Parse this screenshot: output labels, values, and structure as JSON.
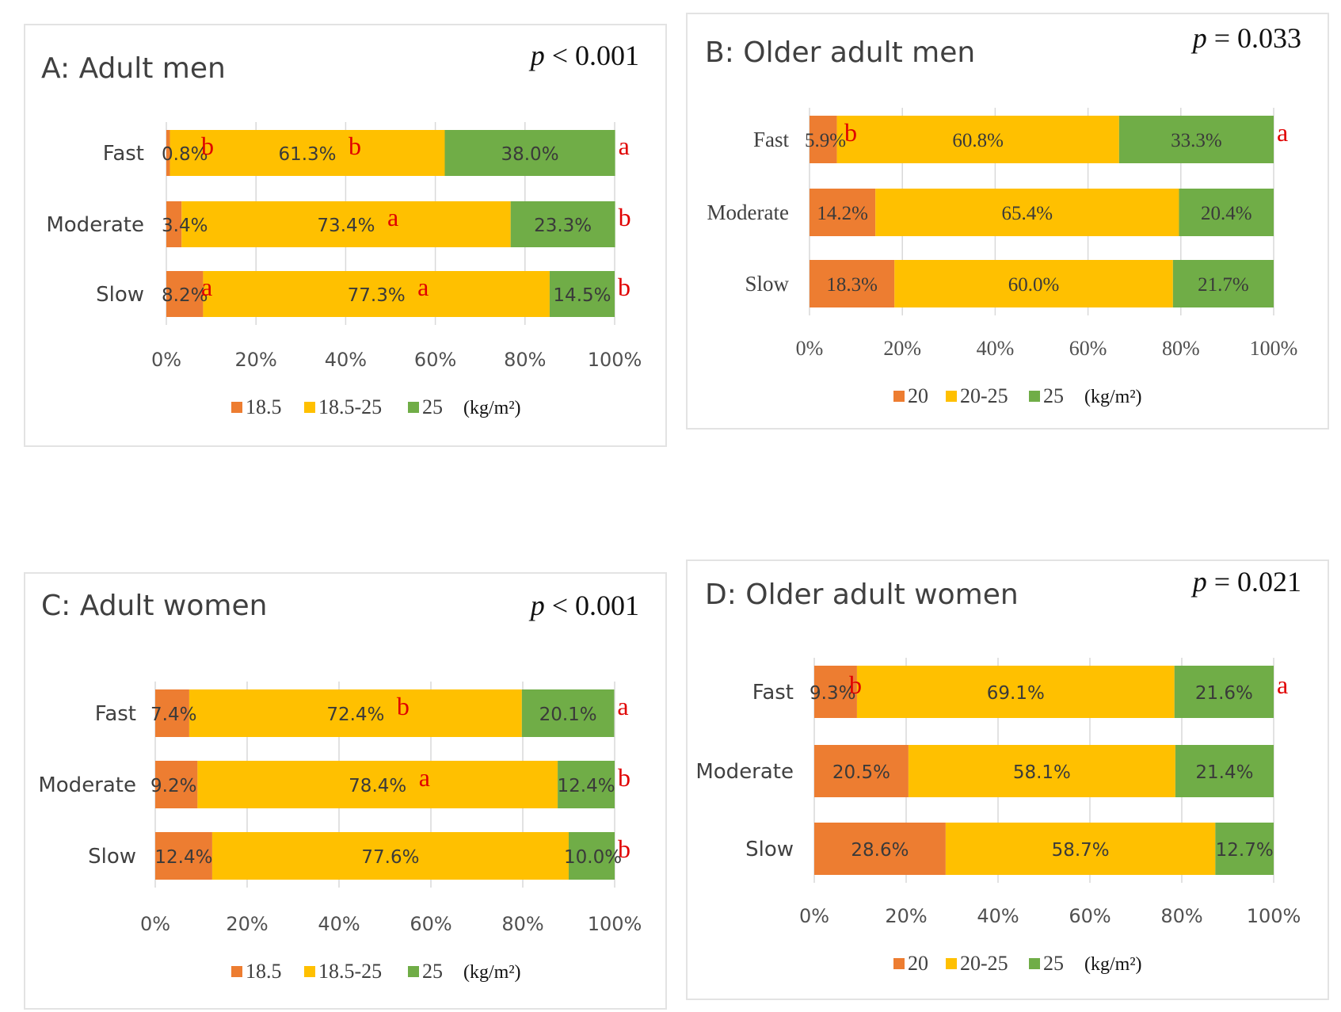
{
  "colors": {
    "low": "#ED7D31",
    "mid": "#FFC000",
    "high": "#70AD47"
  },
  "chart_data": [
    {
      "type": "bar",
      "stacked": true,
      "orientation": "horizontal",
      "title": "A: Adult men",
      "p_symbol": "p",
      "p_rest": " < 0.001",
      "categories": [
        "Fast",
        "Moderate",
        "Slow"
      ],
      "series": [
        {
          "name": "18.5",
          "values": [
            0.8,
            3.4,
            8.2
          ],
          "labels": [
            "0.8%",
            "3.4%",
            "8.2%"
          ],
          "sig": [
            "b",
            "",
            "a"
          ]
        },
        {
          "name": "18.5-25",
          "values": [
            61.3,
            73.4,
            77.3
          ],
          "labels": [
            "61.3%",
            "73.4%",
            "77.3%"
          ],
          "sig": [
            "b",
            "a",
            "a"
          ]
        },
        {
          "name": "25",
          "values": [
            38.0,
            23.3,
            14.5
          ],
          "labels": [
            "38.0%",
            "23.3%",
            "14.5%"
          ],
          "sig": [
            "a",
            "b",
            "b"
          ]
        }
      ],
      "xticks": [
        "0%",
        "20%",
        "40%",
        "60%",
        "80%",
        "100%"
      ],
      "xlim": [
        0,
        100
      ],
      "unit": "(kg/m²)",
      "legend_position": "bottom",
      "grid": true
    },
    {
      "type": "bar",
      "stacked": true,
      "orientation": "horizontal",
      "title": "B: Older adult men",
      "p_symbol": "p",
      "p_rest": " = 0.033",
      "categories": [
        "Fast",
        "Moderate",
        "Slow"
      ],
      "series": [
        {
          "name": "20",
          "values": [
            5.9,
            14.2,
            18.3
          ],
          "labels": [
            "5.9%",
            "14.2%",
            "18.3%"
          ],
          "sig": [
            "b",
            "",
            ""
          ]
        },
        {
          "name": "20-25",
          "values": [
            60.8,
            65.4,
            60.0
          ],
          "labels": [
            "60.8%",
            "65.4%",
            "60.0%"
          ],
          "sig": [
            "",
            "",
            ""
          ]
        },
        {
          "name": "25",
          "values": [
            33.3,
            20.4,
            21.7
          ],
          "labels": [
            "33.3%",
            "20.4%",
            "21.7%"
          ],
          "sig": [
            "a",
            "",
            ""
          ]
        }
      ],
      "xticks": [
        "0%",
        "20%",
        "40%",
        "60%",
        "80%",
        "100%"
      ],
      "xlim": [
        0,
        100
      ],
      "unit": "(kg/m²)",
      "legend_position": "bottom",
      "grid": true
    },
    {
      "type": "bar",
      "stacked": true,
      "orientation": "horizontal",
      "title": "C: Adult women",
      "p_symbol": "p",
      "p_rest": " < 0.001",
      "categories": [
        "Fast",
        "Moderate",
        "Slow"
      ],
      "series": [
        {
          "name": "18.5",
          "values": [
            7.4,
            9.2,
            12.4
          ],
          "labels": [
            "7.4%",
            "9.2%",
            "12.4%"
          ],
          "sig": [
            "",
            "",
            ""
          ]
        },
        {
          "name": "18.5-25",
          "values": [
            72.4,
            78.4,
            77.6
          ],
          "labels": [
            "72.4%",
            "78.4%",
            "77.6%"
          ],
          "sig": [
            "b",
            "a",
            ""
          ]
        },
        {
          "name": "25",
          "values": [
            20.1,
            12.4,
            10.0
          ],
          "labels": [
            "20.1%",
            "12.4%",
            "10.0%"
          ],
          "sig": [
            "a",
            "b",
            "b"
          ]
        }
      ],
      "xticks": [
        "0%",
        "20%",
        "40%",
        "60%",
        "80%",
        "100%"
      ],
      "xlim": [
        0,
        100
      ],
      "unit": "(kg/m²)",
      "legend_position": "bottom",
      "grid": true
    },
    {
      "type": "bar",
      "stacked": true,
      "orientation": "horizontal",
      "title": "D: Older adult women",
      "p_symbol": "p",
      "p_rest": " = 0.021",
      "categories": [
        "Fast",
        "Moderate",
        "Slow"
      ],
      "series": [
        {
          "name": "20",
          "values": [
            9.3,
            20.5,
            28.6
          ],
          "labels": [
            "9.3%",
            "20.5%",
            "28.6%"
          ],
          "sig": [
            "b",
            "",
            ""
          ]
        },
        {
          "name": "20-25",
          "values": [
            69.1,
            58.1,
            58.7
          ],
          "labels": [
            "69.1%",
            "58.1%",
            "58.7%"
          ],
          "sig": [
            "",
            "",
            ""
          ]
        },
        {
          "name": "25",
          "values": [
            21.6,
            21.4,
            12.7
          ],
          "labels": [
            "21.6%",
            "21.4%",
            "12.7%"
          ],
          "sig": [
            "a",
            "",
            ""
          ]
        }
      ],
      "xticks": [
        "0%",
        "20%",
        "40%",
        "60%",
        "80%",
        "100%"
      ],
      "xlim": [
        0,
        100
      ],
      "unit": "(kg/m²)",
      "legend_position": "bottom",
      "grid": true
    }
  ]
}
